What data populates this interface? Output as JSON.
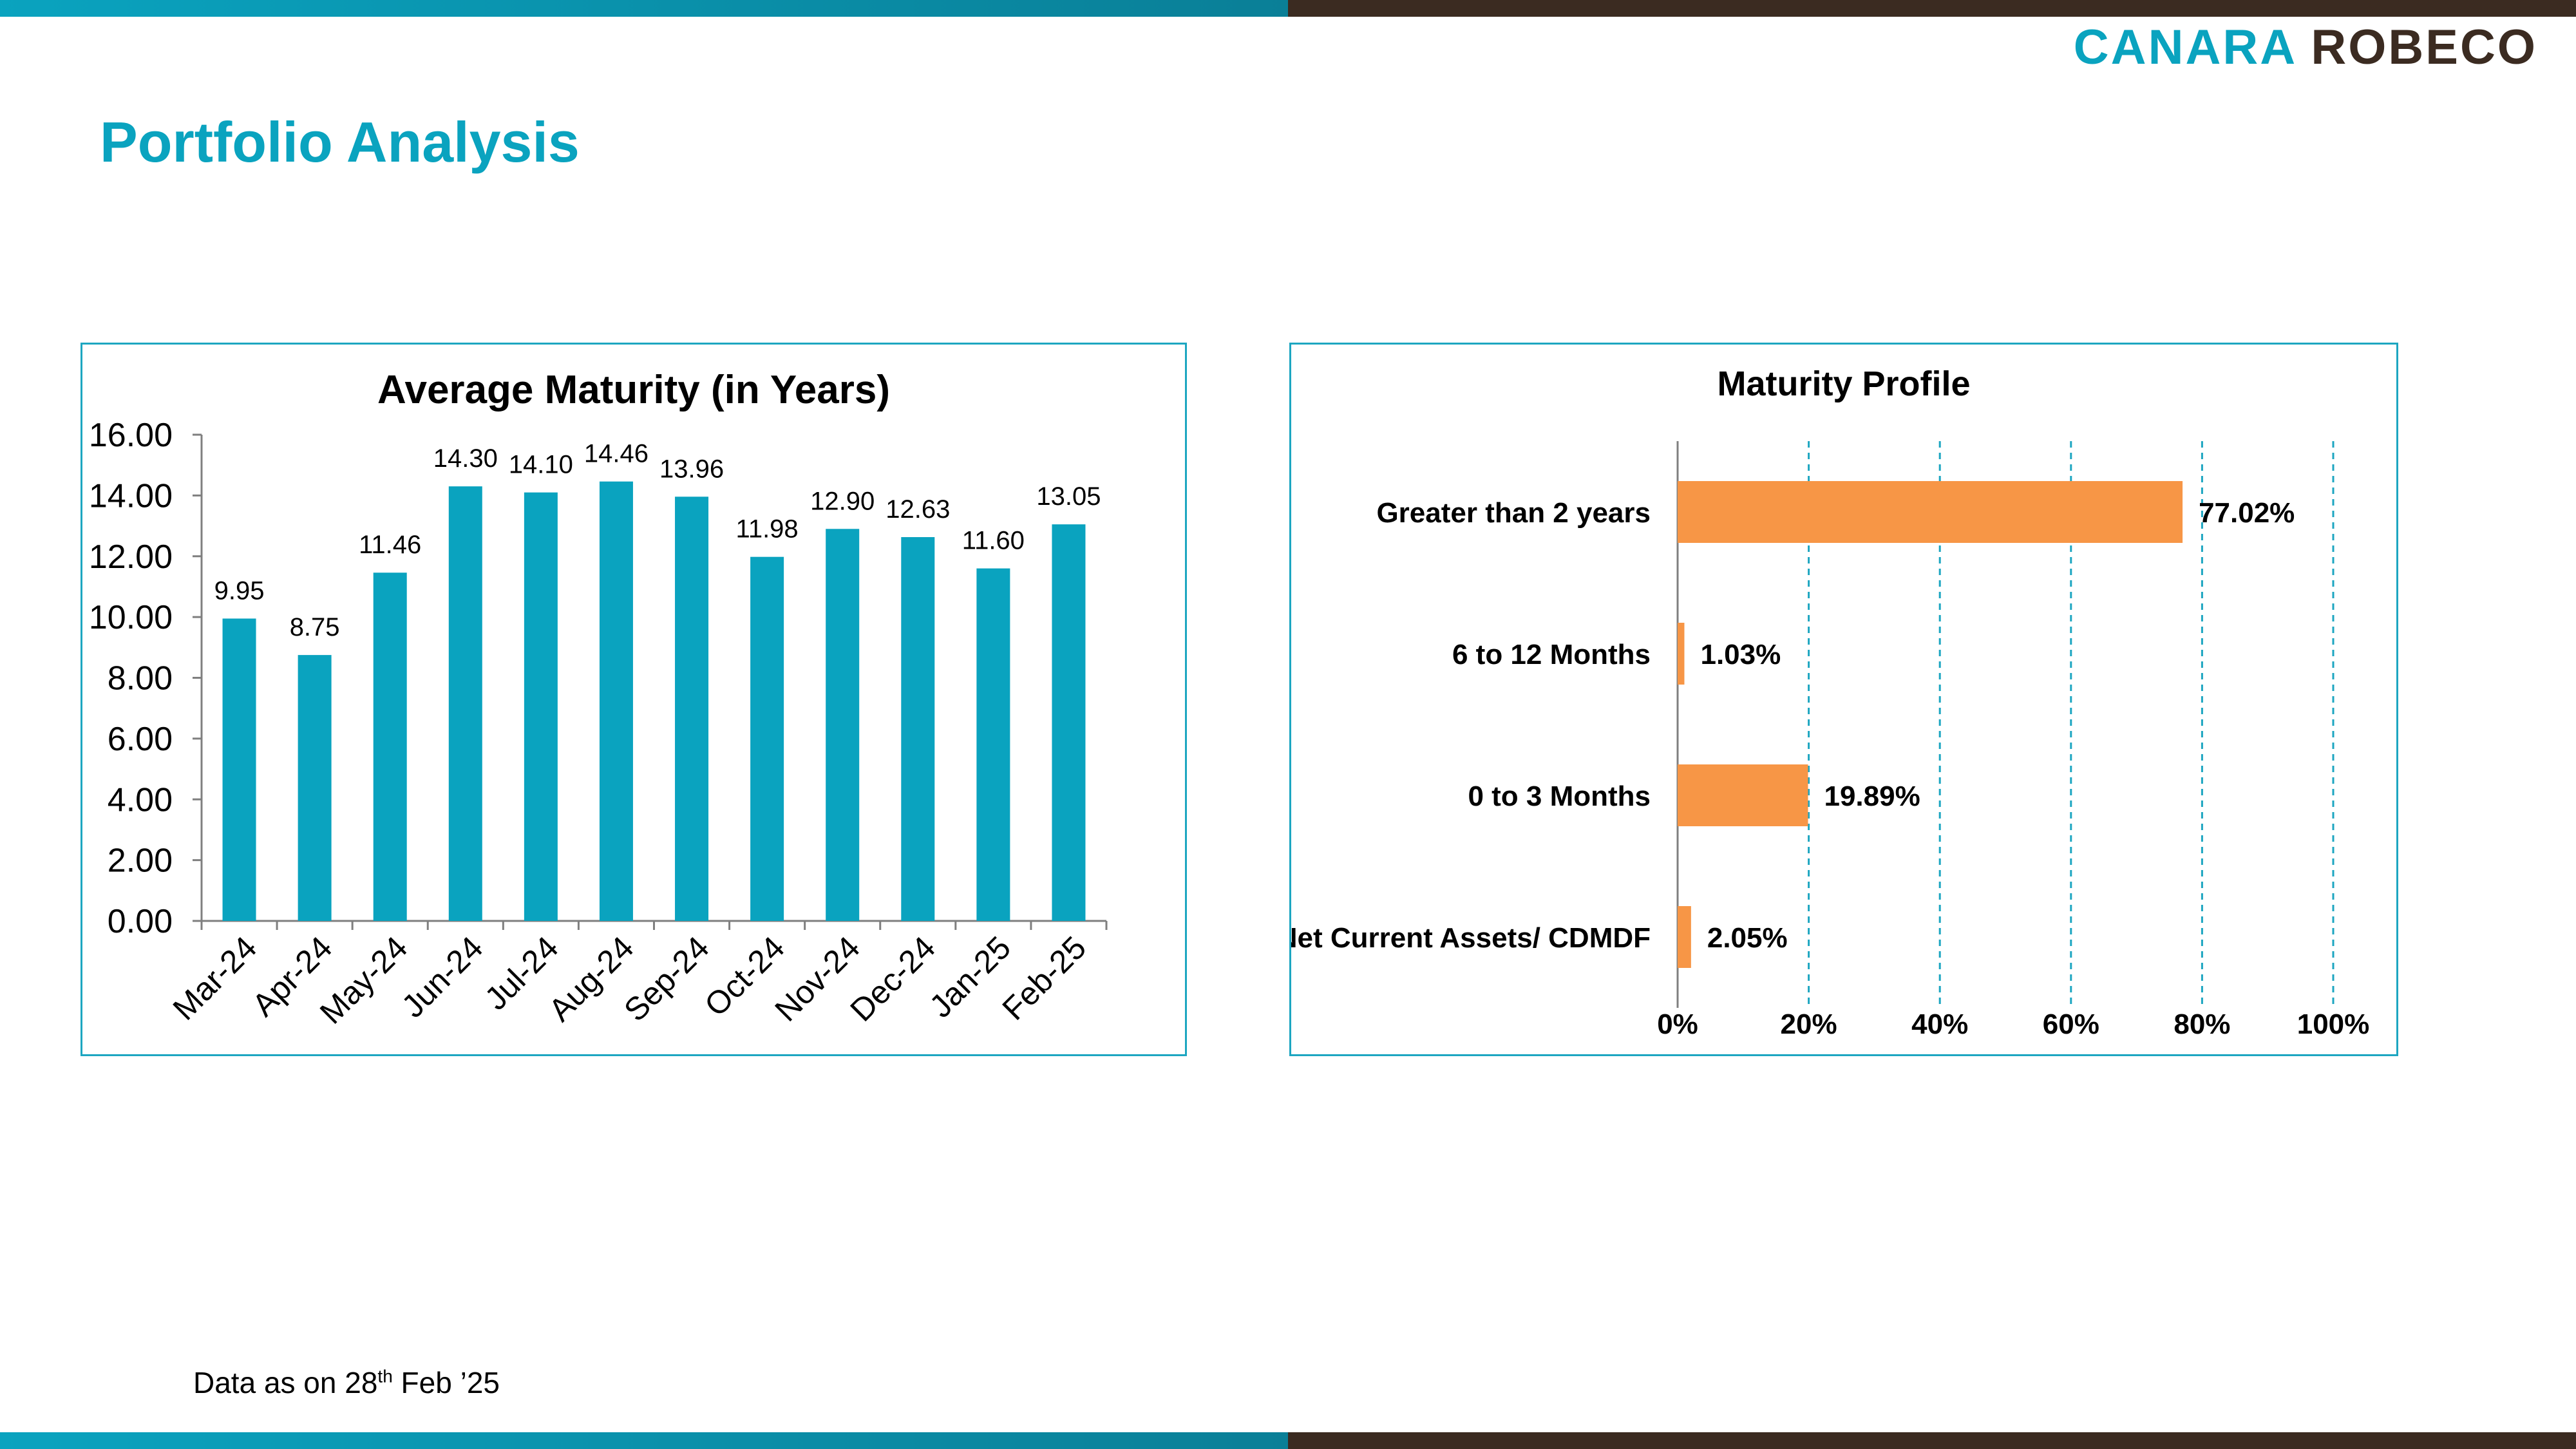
{
  "brand": {
    "part1": "CANARA",
    "part2": "ROBECO"
  },
  "page_title": "Portfolio Analysis",
  "footnote": {
    "before": "Data as on 28",
    "sup": "th",
    "after": " Feb  ’25"
  },
  "colors": {
    "teal": "#0aa3bf",
    "brown": "#3b2b21",
    "bar_blue": "#0aa3bf",
    "bar_orange": "#f79646"
  },
  "chart_data": [
    {
      "type": "bar",
      "title": "Average Maturity (in Years)",
      "categories": [
        "Mar-24",
        "Apr-24",
        "May-24",
        "Jun-24",
        "Jul-24",
        "Aug-24",
        "Sep-24",
        "Oct-24",
        "Nov-24",
        "Dec-24",
        "Jan-25",
        "Feb-25"
      ],
      "values": [
        9.95,
        8.75,
        11.46,
        14.3,
        14.1,
        14.46,
        13.96,
        11.98,
        12.9,
        12.63,
        11.6,
        13.05
      ],
      "value_labels": [
        "9.95",
        "8.75",
        "11.46",
        "14.30",
        "14.10",
        "14.46",
        "13.96",
        "11.98",
        "12.90",
        "12.63",
        "11.60",
        "13.05"
      ],
      "yticks": [
        "0.00",
        "2.00",
        "4.00",
        "6.00",
        "8.00",
        "10.00",
        "12.00",
        "14.00",
        "16.00"
      ],
      "ylim": [
        0,
        16
      ],
      "grid": false,
      "legend": "none"
    },
    {
      "type": "bar",
      "orientation": "horizontal",
      "title": "Maturity Profile",
      "categories": [
        "Greater than 2 years",
        "6 to 12 Months",
        "0 to 3 Months",
        "Net Current Assets/ CDMDF"
      ],
      "values": [
        77.02,
        1.03,
        19.89,
        2.05
      ],
      "value_labels": [
        "77.02%",
        "1.03%",
        "19.89%",
        "2.05%"
      ],
      "xticks": [
        "0%",
        "20%",
        "40%",
        "60%",
        "80%",
        "100%"
      ],
      "xlim": [
        0,
        100
      ],
      "grid": "vertical dashed",
      "legend": "none"
    }
  ]
}
